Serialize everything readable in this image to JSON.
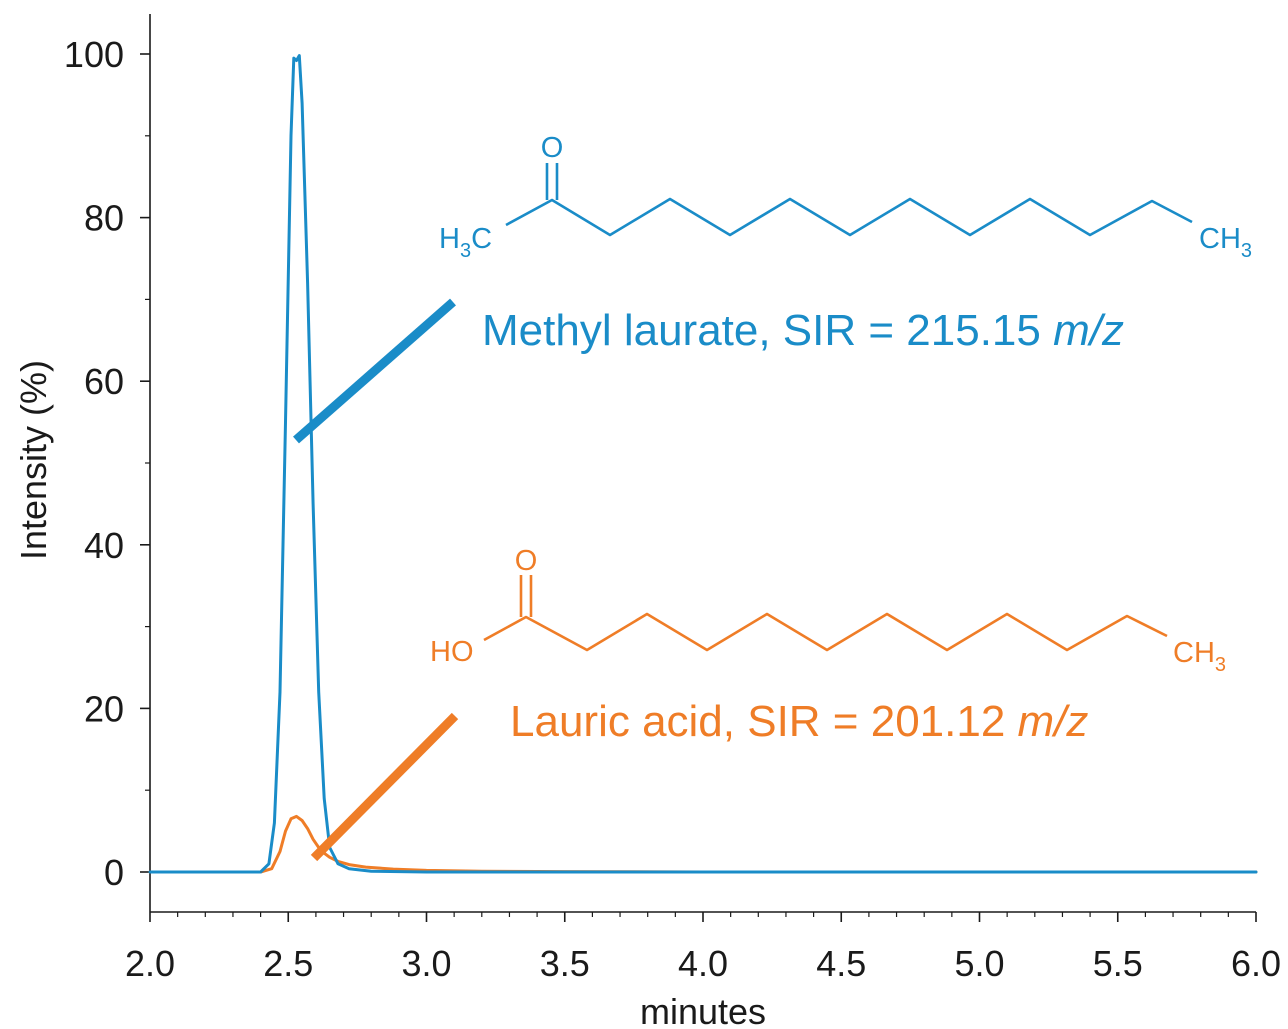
{
  "chart_data": {
    "type": "line",
    "xlabel": "minutes",
    "ylabel": "Intensity (%)",
    "xlim": [
      2.0,
      6.0
    ],
    "ylim": [
      -5,
      105
    ],
    "xticks": [
      "2.0",
      "2.5",
      "3.0",
      "3.5",
      "4.0",
      "4.5",
      "5.0",
      "5.5",
      "6.0"
    ],
    "yticks": [
      "0",
      "20",
      "40",
      "60",
      "80",
      "100"
    ],
    "grid": false,
    "series": [
      {
        "name": "Lauric acid, SIR = 201.12 m/z",
        "color": "#ef7d27",
        "x": [
          2.0,
          2.4,
          2.44,
          2.47,
          2.49,
          2.51,
          2.53,
          2.55,
          2.57,
          2.59,
          2.61,
          2.63,
          2.65,
          2.68,
          2.72,
          2.78,
          2.88,
          3.0,
          3.2,
          3.5,
          4.0,
          6.0
        ],
        "y": [
          0,
          0,
          0.4,
          2.5,
          5.0,
          6.5,
          6.8,
          6.3,
          5.3,
          4.0,
          3.0,
          2.3,
          1.8,
          1.3,
          0.9,
          0.6,
          0.35,
          0.2,
          0.1,
          0.05,
          0,
          0
        ]
      },
      {
        "name": "Methyl laurate, SIR = 215.15 m/z",
        "color": "#1a8cc8",
        "x": [
          2.0,
          2.4,
          2.43,
          2.45,
          2.47,
          2.49,
          2.51,
          2.52,
          2.53,
          2.54,
          2.55,
          2.57,
          2.59,
          2.61,
          2.63,
          2.65,
          2.68,
          2.72,
          2.8,
          3.0,
          6.0
        ],
        "y": [
          0,
          0,
          1,
          6,
          22,
          55,
          90,
          99.5,
          99.2,
          99.8,
          94,
          72,
          45,
          22,
          9,
          3,
          1,
          0.4,
          0.1,
          0,
          0
        ]
      }
    ],
    "annotations": {
      "methyl_text": "Methyl laurate, SIR = 215.15 ",
      "methyl_mz": "m/z",
      "lauric_text": "Lauric acid, SIR = 201.12 ",
      "lauric_mz": "m/z"
    },
    "structures": {
      "methyl": {
        "oxygen": "O",
        "left_group": "H",
        "left_sub": "3",
        "left_tail": "C",
        "right_group": "CH",
        "right_sub": "3"
      },
      "lauric": {
        "oxygen": "O",
        "left_group": "HO",
        "right_group": "CH",
        "right_sub": "3"
      }
    }
  },
  "colors": {
    "blue": "#1a8cc8",
    "orange": "#ef7d27",
    "axis": "#1a1a1a"
  }
}
